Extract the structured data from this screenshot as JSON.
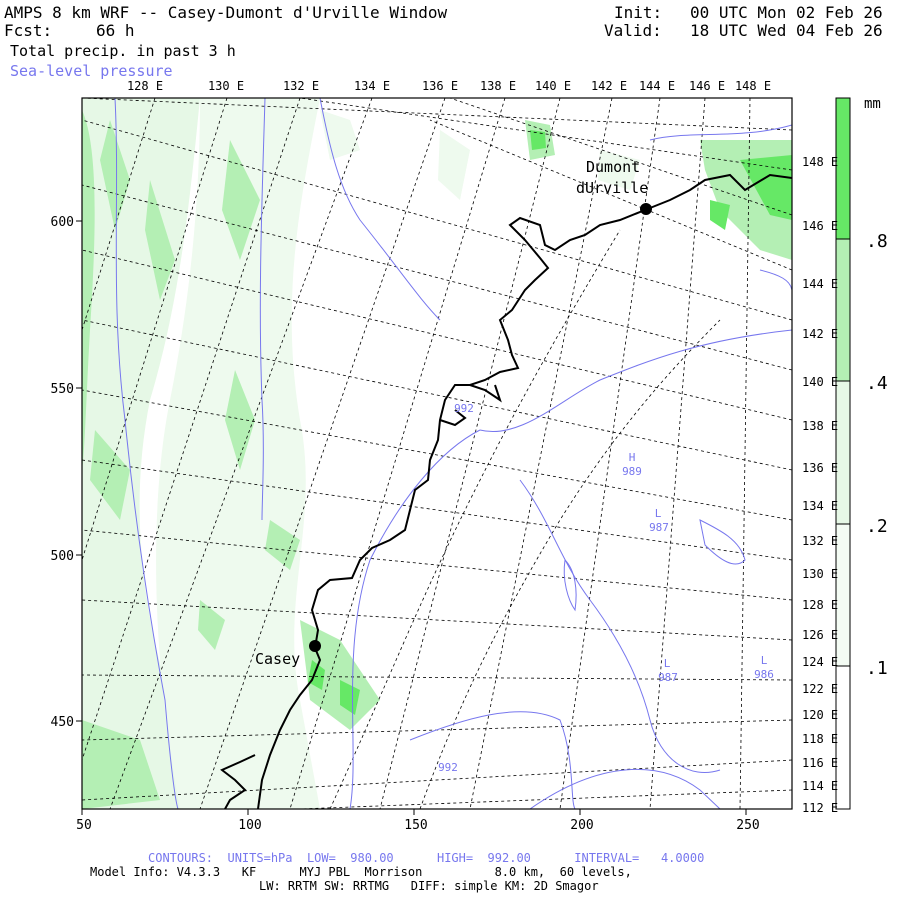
{
  "header": {
    "title": "AMPS 8 km WRF -- Casey-Dumont d'Urville Window",
    "fcst_label": "Fcst:",
    "fcst_value": "66 h",
    "field": "Total precip. in past 3 h",
    "overlay": "Sea-level pressure",
    "init_label": "Init:",
    "init_value": "00 UTC Mon 02 Feb 26",
    "valid_label": "Valid:",
    "valid_value": "18 UTC Wed 04 Feb 26"
  },
  "map": {
    "x_ticks": [
      "50",
      "100",
      "150",
      "200",
      "250"
    ],
    "y_ticks": [
      "600",
      "550",
      "500",
      "450"
    ],
    "top_lon_labels": [
      "128 E",
      "130 E",
      "132 E",
      "134 E",
      "136 E",
      "138 E",
      "140 E",
      "142 E",
      "144 E",
      "146 E",
      "148 E"
    ],
    "right_lon_labels": [
      "148 E",
      "146 E",
      "144 E",
      "142 E",
      "140 E",
      "138 E",
      "136 E",
      "134 E",
      "132 E",
      "130 E",
      "128 E",
      "126 E",
      "124 E",
      "122 E",
      "120 E",
      "118 E",
      "116 E",
      "114 E",
      "112 E"
    ],
    "stations": [
      {
        "name_line1": "Dumont",
        "name_line2": "dUrville"
      },
      {
        "name_line1": "Casey",
        "name_line2": ""
      }
    ],
    "pressure_labels": [
      "992",
      "H",
      "989",
      "L",
      "987",
      "L",
      "987",
      "L",
      "986",
      "992"
    ],
    "colors": {
      "precip_light": "#e6f8e6",
      "precip_mid": "#b4efb4",
      "precip_dark": "#66e866",
      "isobar": "#7777ee",
      "coast": "#000000",
      "grid": "#000000"
    }
  },
  "colorbar": {
    "unit": "mm",
    "labels": [
      ".8",
      ".4",
      ".2",
      ".1"
    ],
    "colors": [
      "#66e866",
      "#b4efb4",
      "#e6f8e6",
      "#ffffff"
    ]
  },
  "footer": {
    "contours": "CONTOURS:  UNITS=hPa  LOW=  980.00      HIGH=  992.00      INTERVAL=   4.0000",
    "model_info": "Model Info: V4.3.3   KF      MYJ PBL  Morrison          8.0 km,  60 levels,",
    "physics": "LW: RRTM SW: RRTMG   DIFF: simple KM: 2D Smagor"
  }
}
